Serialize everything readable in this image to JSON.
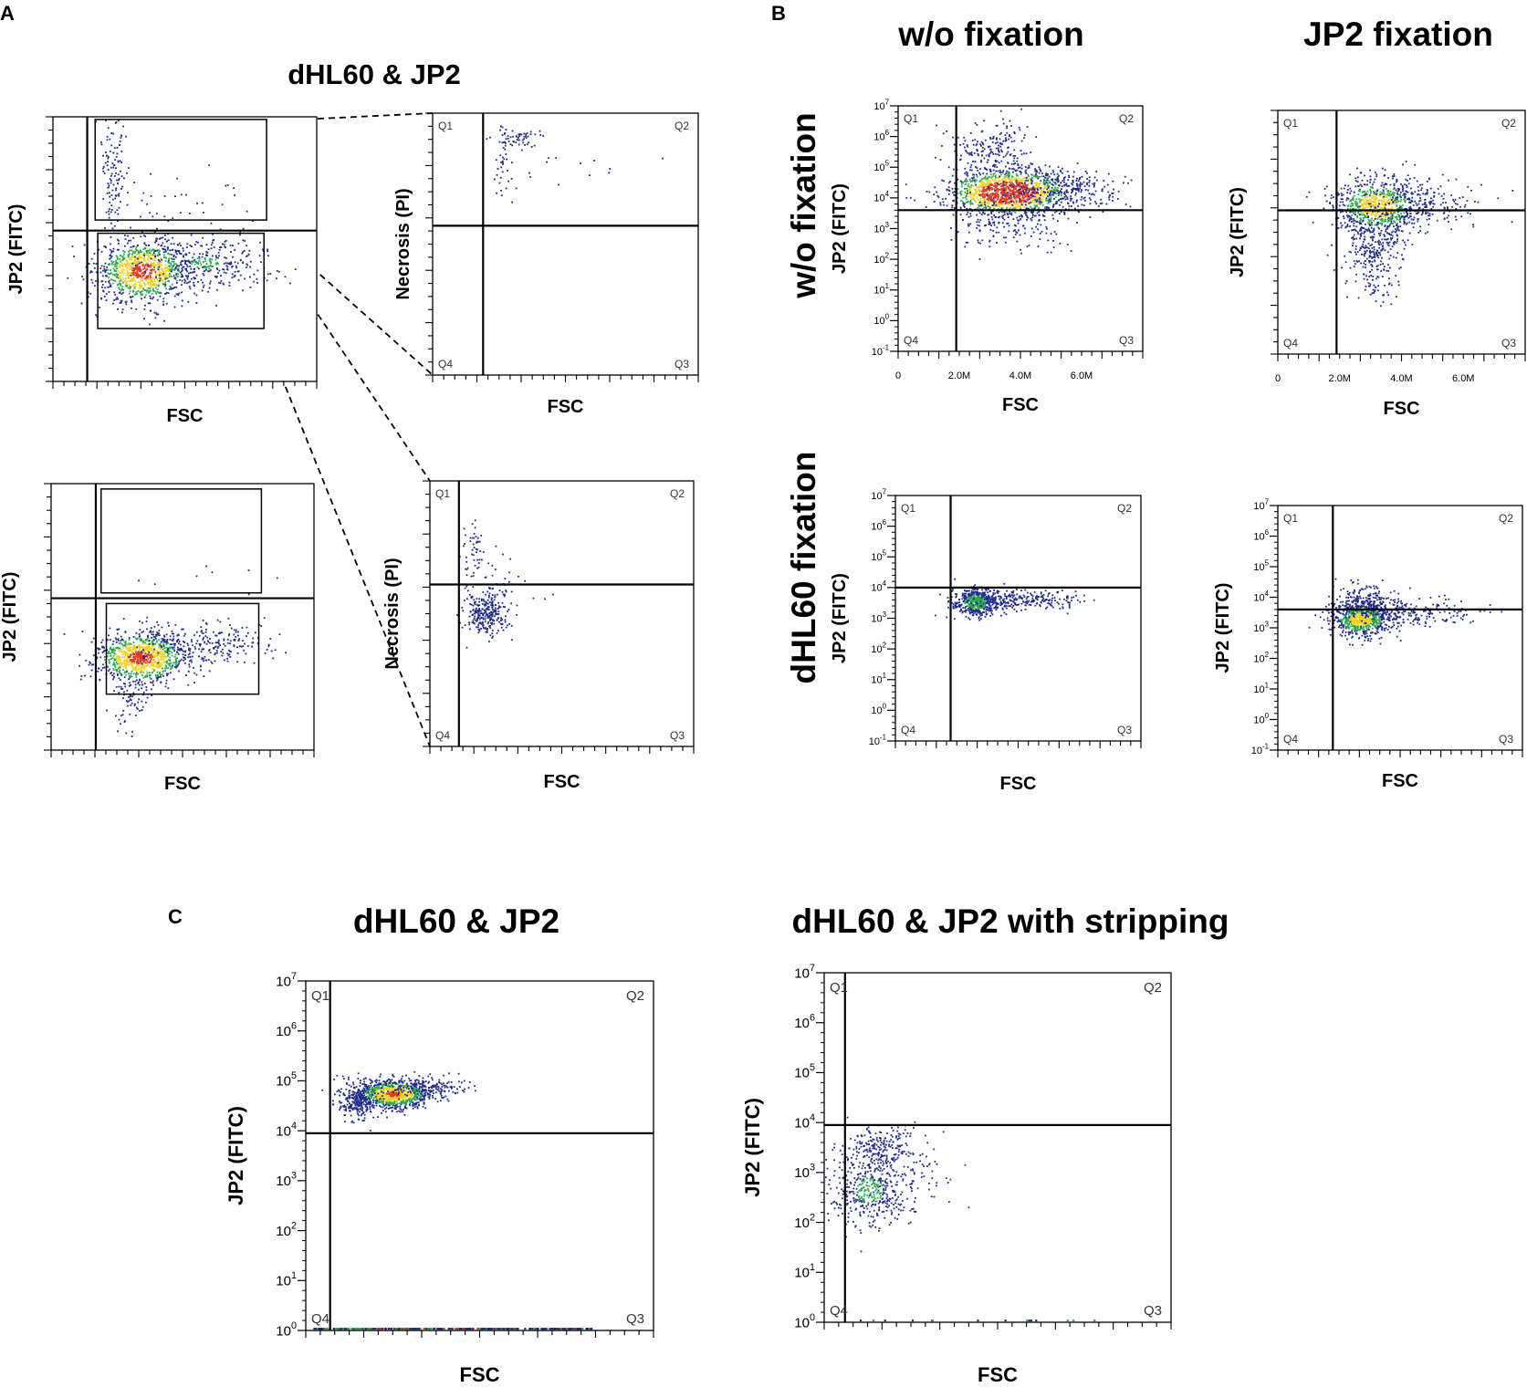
{
  "figure": {
    "panel_labels": [
      "A",
      "B",
      "C"
    ],
    "panel_a": {
      "title": "dHL60 & JP2",
      "zoom_connectors": "dashed"
    },
    "panel_b": {
      "col_titles": [
        "w/o fixation",
        "JP2 fixation"
      ],
      "row_titles": [
        "w/o fixation",
        "dHL60 fixation"
      ]
    },
    "panel_c": {
      "titles": [
        "dHL60 & JP2",
        "dHL60 & JP2  with stripping"
      ]
    }
  },
  "colors": {
    "density_low": "#1f2a8c",
    "density_mid": "#2aa84a",
    "density_high": "#f0d020",
    "density_peak": "#e03a1e",
    "axis": "#000000"
  },
  "chart_data": [
    {
      "id": "A1",
      "type": "scatter",
      "title": "",
      "xlabel": "FSC",
      "ylabel": "JP2 (FITC)",
      "x_scale": "linear",
      "y_scale": "log-unlabeled",
      "xlim": [
        0,
        100
      ],
      "ylim": [
        0,
        100
      ],
      "quadrant_gate": {
        "x": 13,
        "y": 57
      },
      "quadrant_labels": [],
      "rect_gates": [
        {
          "x": [
            16,
            81
          ],
          "y": [
            61,
            99
          ]
        },
        {
          "x": [
            17,
            80
          ],
          "y": [
            20,
            56
          ]
        }
      ],
      "clusters": [
        {
          "cx": 34,
          "cy": 42,
          "sx": 9,
          "sy": 6,
          "n": 950
        },
        {
          "cx": 58,
          "cy": 45,
          "sx": 13,
          "sy": 5,
          "n": 320
        },
        {
          "cx": 23,
          "cy": 80,
          "sx": 2.6,
          "sy": 11,
          "n": 120
        },
        {
          "cx": 48,
          "cy": 68,
          "sx": 18,
          "sy": 7,
          "n": 35
        }
      ]
    },
    {
      "id": "A2",
      "type": "scatter",
      "title": "",
      "xlabel": "FSC",
      "ylabel": "Necrosis (PI)",
      "x_scale": "linear",
      "y_scale": "log-unlabeled",
      "xlim": [
        0,
        100
      ],
      "ylim": [
        0,
        100
      ],
      "quadrant_gate": {
        "x": 19,
        "y": 57
      },
      "quadrant_labels": [
        "Q1",
        "Q2",
        "Q3",
        "Q4"
      ],
      "clusters": [
        {
          "cx": 32,
          "cy": 91,
          "sx": 5,
          "sy": 2,
          "n": 55
        },
        {
          "cx": 26,
          "cy": 78,
          "sx": 2,
          "sy": 6,
          "n": 30
        },
        {
          "cx": 48,
          "cy": 79,
          "sx": 16,
          "sy": 6,
          "n": 18
        }
      ]
    },
    {
      "id": "A3",
      "type": "scatter",
      "title": "",
      "xlabel": "FSC",
      "ylabel": "JP2 (FITC)",
      "x_scale": "linear",
      "y_scale": "log-unlabeled",
      "xlim": [
        0,
        100
      ],
      "ylim": [
        0,
        100
      ],
      "quadrant_gate": {
        "x": 17,
        "y": 57
      },
      "quadrant_labels": [],
      "rect_gates": [
        {
          "x": [
            19,
            80
          ],
          "y": [
            59,
            98
          ]
        },
        {
          "x": [
            21,
            79
          ],
          "y": [
            21,
            55
          ]
        }
      ],
      "clusters": [
        {
          "cx": 34,
          "cy": 35,
          "sx": 9,
          "sy": 5,
          "n": 950
        },
        {
          "cx": 60,
          "cy": 40,
          "sx": 13,
          "sy": 4,
          "n": 230
        },
        {
          "cx": 30,
          "cy": 18,
          "sx": 4,
          "sy": 6,
          "n": 55
        },
        {
          "cx": 53,
          "cy": 65,
          "sx": 20,
          "sy": 4,
          "n": 8
        }
      ]
    },
    {
      "id": "A4",
      "type": "scatter",
      "title": "",
      "xlabel": "FSC",
      "ylabel": "Necrosis (PI)",
      "x_scale": "linear",
      "y_scale": "log-unlabeled",
      "xlim": [
        0,
        100
      ],
      "ylim": [
        0,
        100
      ],
      "quadrant_gate": {
        "x": 11,
        "y": 61
      },
      "quadrant_labels": [
        "Q1",
        "Q2",
        "Q3",
        "Q4"
      ],
      "clusters": [
        {
          "cx": 21,
          "cy": 50,
          "sx": 4,
          "sy": 4,
          "n": 260
        },
        {
          "cx": 16,
          "cy": 76,
          "sx": 2,
          "sy": 5,
          "n": 40
        },
        {
          "cx": 25,
          "cy": 60,
          "sx": 6,
          "sy": 6,
          "n": 60
        }
      ]
    },
    {
      "id": "B1",
      "type": "scatter",
      "title": "",
      "xlabel": "FSC",
      "ylabel": "JP2 (FITC)",
      "x_scale": "linear",
      "y_scale": "log",
      "xlim": [
        0,
        8
      ],
      "ylim": [
        -1,
        7
      ],
      "xticks": [
        "0",
        "2.0M",
        "4.0M",
        "6.0M"
      ],
      "xtick_values": [
        0,
        2,
        4,
        6
      ],
      "yticks": [
        "10-1",
        "100",
        "101",
        "102",
        "103",
        "104",
        "105",
        "106",
        "107"
      ],
      "ytick_values": [
        -1,
        0,
        1,
        2,
        3,
        4,
        5,
        6,
        7
      ],
      "quadrant_gate": {
        "x": 1.9,
        "y": 3.6
      },
      "quadrant_labels": [
        "Q1",
        "Q2",
        "Q3",
        "Q4"
      ],
      "clusters": [
        {
          "cx": 3.6,
          "cy": 4.2,
          "sx": 1.0,
          "sy": 0.38,
          "n": 1300
        },
        {
          "cx": 5.4,
          "cy": 4.3,
          "sx": 1.0,
          "sy": 0.35,
          "n": 260
        },
        {
          "cx": 3.0,
          "cy": 5.6,
          "sx": 0.7,
          "sy": 0.45,
          "n": 200
        },
        {
          "cx": 3.5,
          "cy": 3.2,
          "sx": 0.9,
          "sy": 0.5,
          "n": 180
        }
      ]
    },
    {
      "id": "B2",
      "type": "scatter",
      "title": "",
      "xlabel": "FSC",
      "ylabel": "JP2 (FITC)",
      "x_scale": "linear",
      "y_scale": "log-unlabeled",
      "xlim": [
        0,
        8
      ],
      "ylim": [
        0,
        100
      ],
      "xticks": [
        "0",
        "2.0M",
        "4.0M",
        "6.0M"
      ],
      "xtick_values": [
        0,
        2,
        4,
        6
      ],
      "quadrant_gate": {
        "x": 1.9,
        "y": 59
      },
      "quadrant_labels": [
        "Q1",
        "Q2",
        "Q3",
        "Q4"
      ],
      "clusters": [
        {
          "cx": 3.2,
          "cy": 61,
          "sx": 0.7,
          "sy": 6,
          "n": 750
        },
        {
          "cx": 4.5,
          "cy": 62,
          "sx": 1.0,
          "sy": 5,
          "n": 200
        },
        {
          "cx": 3.1,
          "cy": 44,
          "sx": 0.5,
          "sy": 9,
          "n": 260
        },
        {
          "cx": 3.2,
          "cy": 28,
          "sx": 0.3,
          "sy": 5,
          "n": 35
        }
      ]
    },
    {
      "id": "B3",
      "type": "scatter",
      "title": "",
      "xlabel": "FSC",
      "ylabel": "JP2 (FITC)",
      "x_scale": "linear",
      "y_scale": "log",
      "xlim": [
        0,
        8
      ],
      "ylim": [
        -1,
        7
      ],
      "yticks": [
        "10-1",
        "100",
        "101",
        "102",
        "103",
        "104",
        "105",
        "106",
        "107"
      ],
      "ytick_values": [
        -1,
        0,
        1,
        2,
        3,
        4,
        5,
        6,
        7
      ],
      "quadrant_gate": {
        "x": 1.8,
        "y": 4.0
      },
      "quadrant_labels": [
        "Q1",
        "Q2",
        "Q3",
        "Q4"
      ],
      "clusters": [
        {
          "cx": 2.6,
          "cy": 3.55,
          "sx": 0.35,
          "sy": 0.22,
          "n": 500
        },
        {
          "cx": 3.9,
          "cy": 3.6,
          "sx": 0.9,
          "sy": 0.16,
          "n": 220
        },
        {
          "cx": 5.6,
          "cy": 3.7,
          "sx": 0.8,
          "sy": 0.12,
          "n": 35
        }
      ]
    },
    {
      "id": "B4",
      "type": "scatter",
      "title": "",
      "xlabel": "FSC",
      "ylabel": "JP2 (FITC)",
      "x_scale": "linear",
      "y_scale": "log",
      "xlim": [
        0,
        8
      ],
      "ylim": [
        -1,
        7
      ],
      "yticks": [
        "10-1",
        "100",
        "101",
        "102",
        "103",
        "104",
        "105",
        "106",
        "107"
      ],
      "ytick_values": [
        -1,
        0,
        1,
        2,
        3,
        4,
        5,
        6,
        7
      ],
      "quadrant_gate": {
        "x": 1.8,
        "y": 3.6
      },
      "quadrant_labels": [
        "Q1",
        "Q2",
        "Q3",
        "Q4"
      ],
      "clusters": [
        {
          "cx": 2.7,
          "cy": 3.3,
          "sx": 0.5,
          "sy": 0.28,
          "n": 700
        },
        {
          "cx": 4.2,
          "cy": 3.5,
          "sx": 1.0,
          "sy": 0.22,
          "n": 220
        },
        {
          "cx": 2.8,
          "cy": 3.9,
          "sx": 0.5,
          "sy": 0.3,
          "n": 180
        }
      ]
    },
    {
      "id": "C1",
      "type": "scatter",
      "title": "dHL60 & JP2",
      "xlabel": "FSC",
      "ylabel": "JP2 (FITC)",
      "x_scale": "linear",
      "y_scale": "log",
      "xlim": [
        0,
        100
      ],
      "ylim": [
        0,
        7
      ],
      "yticks": [
        "100",
        "101",
        "102",
        "103",
        "104",
        "105",
        "106",
        "107"
      ],
      "ytick_values": [
        0,
        1,
        2,
        3,
        4,
        5,
        6,
        7
      ],
      "quadrant_gate": {
        "x": 7,
        "y": 3.95
      },
      "quadrant_labels": [
        "Q1",
        "Q2",
        "Q3",
        "Q4"
      ],
      "clusters": [
        {
          "cx": 25,
          "cy": 4.75,
          "sx": 5.5,
          "sy": 0.14,
          "n": 900
        },
        {
          "cx": 15,
          "cy": 4.6,
          "sx": 3,
          "sy": 0.18,
          "n": 250
        },
        {
          "cx": 34,
          "cy": 4.9,
          "sx": 6,
          "sy": 0.1,
          "n": 160
        }
      ],
      "baseline_events": 360
    },
    {
      "id": "C2",
      "type": "scatter",
      "title": "dHL60 & JP2  with stripping",
      "xlabel": "FSC",
      "ylabel": "JP2 (FITC)",
      "x_scale": "linear",
      "y_scale": "log",
      "xlim": [
        0,
        100
      ],
      "ylim": [
        0,
        7
      ],
      "yticks": [
        "100",
        "101",
        "102",
        "103",
        "104",
        "105",
        "106",
        "107"
      ],
      "ytick_values": [
        0,
        1,
        2,
        3,
        4,
        5,
        6,
        7
      ],
      "quadrant_gate": {
        "x": 6,
        "y": 3.95
      },
      "quadrant_labels": [
        "Q1",
        "Q2",
        "Q3",
        "Q4"
      ],
      "clusters": [
        {
          "cx": 16,
          "cy": 3.5,
          "sx": 5,
          "sy": 0.22,
          "n": 220
        },
        {
          "cx": 13,
          "cy": 2.65,
          "sx": 5,
          "sy": 0.35,
          "n": 380
        },
        {
          "cx": 23,
          "cy": 2.9,
          "sx": 9,
          "sy": 0.35,
          "n": 90
        }
      ],
      "baseline_events": 15
    }
  ]
}
